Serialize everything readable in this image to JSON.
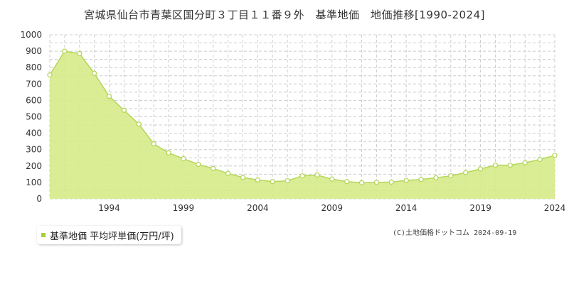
{
  "title": "宮城県仙台市青葉区国分町３丁目１１番９外　基準地価　地価推移[1990-2024]",
  "legend_label": "基準地価 平均坪単価(万円/坪)",
  "credit": "(C)土地価格ドットコム 2024-09-19",
  "colors": {
    "fill": "#d6eb8a",
    "line": "#b5d65a",
    "point_fill": "#ffffff",
    "grid": "#cccccc",
    "legend_marker": "#a6cf3c"
  },
  "chart_data": {
    "type": "area",
    "x": [
      1990,
      1991,
      1992,
      1993,
      1994,
      1995,
      1996,
      1997,
      1998,
      1999,
      2000,
      2001,
      2002,
      2003,
      2004,
      2005,
      2006,
      2007,
      2008,
      2009,
      2010,
      2011,
      2012,
      2013,
      2014,
      2015,
      2016,
      2017,
      2018,
      2019,
      2020,
      2021,
      2022,
      2023,
      2024
    ],
    "series": [
      {
        "name": "基準地価 平均坪単価(万円/坪)",
        "values": [
          755,
          900,
          885,
          765,
          625,
          540,
          455,
          335,
          280,
          245,
          210,
          185,
          155,
          130,
          115,
          105,
          110,
          140,
          145,
          120,
          105,
          98,
          100,
          102,
          112,
          118,
          128,
          140,
          160,
          182,
          205,
          205,
          220,
          240,
          265
        ]
      }
    ],
    "xticks": [
      1994,
      1999,
      2004,
      2009,
      2014,
      2019,
      2024
    ],
    "yticks": [
      0,
      100,
      200,
      300,
      400,
      500,
      600,
      700,
      800,
      900,
      1000
    ],
    "xlim": [
      1990,
      2024
    ],
    "ylim": [
      0,
      1000
    ],
    "grid": true,
    "legend_position": "bottom-left"
  }
}
